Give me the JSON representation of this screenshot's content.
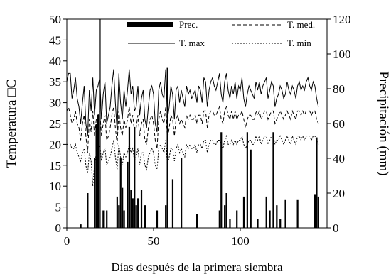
{
  "chart_data": {
    "type": "line",
    "title": "",
    "xlabel": "Días después de la primera siembra",
    "ylabel_left": "Temperatura □C",
    "ylabel_right": "Precipitación (mm)",
    "xlim": [
      0,
      150
    ],
    "ylim_left": [
      0,
      50
    ],
    "ylim_right": [
      0,
      120
    ],
    "x_ticks": [
      0,
      50,
      100
    ],
    "y_left_ticks": [
      0,
      5,
      10,
      15,
      20,
      25,
      30,
      35,
      40,
      45,
      50
    ],
    "y_right_ticks": [
      0,
      20,
      40,
      60,
      80,
      100,
      120
    ],
    "grid": false,
    "legend_position": "top",
    "legend": [
      {
        "key": "prec",
        "label": "Prec."
      },
      {
        "key": "tmed",
        "label": "T. med."
      },
      {
        "key": "tmax",
        "label": "T. max"
      },
      {
        "key": "tmin",
        "label": "T. min"
      }
    ],
    "series": [
      {
        "name": "T. max",
        "axis": "left",
        "style": "solid",
        "x_start": 0,
        "x_step": 1,
        "values": [
          35,
          37,
          37,
          31,
          33,
          36,
          31,
          29,
          25,
          30,
          34,
          25,
          22,
          33,
          28,
          36,
          27,
          33,
          34,
          36,
          26,
          32,
          35,
          25,
          27,
          29,
          34,
          38,
          30,
          23,
          37,
          30,
          26,
          33,
          29,
          33,
          38,
          32,
          34,
          28,
          29,
          34,
          27,
          31,
          33,
          26,
          24,
          29,
          33,
          34,
          32,
          25,
          23,
          33,
          35,
          32,
          31,
          38,
          26,
          29,
          34,
          32,
          26,
          33,
          34,
          30,
          33,
          31,
          29,
          34,
          32,
          33,
          31,
          32,
          33,
          30,
          34,
          33,
          30,
          36,
          35,
          29,
          33,
          35,
          36,
          34,
          33,
          35,
          37,
          32,
          30,
          35,
          37,
          33,
          31,
          34,
          32,
          35,
          31,
          34,
          33,
          36,
          31,
          29,
          32,
          34,
          33,
          32,
          31,
          35,
          33,
          35,
          32,
          34,
          35,
          36,
          31,
          33,
          35,
          34,
          29,
          31,
          32,
          34,
          33,
          31,
          32,
          35,
          33,
          32,
          34,
          33,
          31,
          34,
          35,
          33,
          34,
          33,
          35,
          36,
          34,
          33,
          35,
          34,
          31,
          29
        ]
      },
      {
        "name": "T. med.",
        "axis": "left",
        "style": "dashed",
        "x_start": 0,
        "x_step": 1,
        "values": [
          28,
          29,
          27,
          25,
          26,
          28,
          25,
          24,
          21,
          25,
          27,
          22,
          18,
          26,
          23,
          28,
          22,
          26,
          27,
          28,
          22,
          25,
          27,
          21,
          22,
          24,
          27,
          29,
          24,
          20,
          28,
          24,
          22,
          26,
          24,
          26,
          29,
          25,
          27,
          23,
          24,
          27,
          22,
          25,
          26,
          21,
          20,
          24,
          26,
          27,
          25,
          21,
          19,
          26,
          28,
          26,
          25,
          29,
          21,
          24,
          27,
          26,
          22,
          26,
          27,
          25,
          26,
          25,
          24,
          27,
          26,
          27,
          26,
          26,
          27,
          25,
          27,
          27,
          25,
          28,
          28,
          24,
          27,
          28,
          28,
          27,
          27,
          28,
          29,
          26,
          25,
          28,
          29,
          27,
          26,
          28,
          26,
          28,
          26,
          27,
          27,
          28,
          26,
          24,
          26,
          27,
          27,
          26,
          26,
          28,
          27,
          28,
          26,
          27,
          28,
          28,
          26,
          27,
          28,
          28,
          25,
          26,
          27,
          28,
          27,
          26,
          27,
          28,
          27,
          26,
          28,
          27,
          26,
          28,
          28,
          27,
          28,
          27,
          28,
          28,
          28,
          27,
          28,
          28,
          26,
          25
        ]
      },
      {
        "name": "T. min",
        "axis": "left",
        "style": "dotted",
        "x_start": 0,
        "x_step": 1,
        "values": [
          20,
          20,
          20,
          19,
          19,
          20,
          18,
          17,
          16,
          18,
          19,
          15,
          13,
          18,
          16,
          10,
          15,
          18,
          19,
          20,
          16,
          18,
          19,
          15,
          16,
          17,
          19,
          21,
          17,
          14,
          20,
          17,
          15,
          18,
          17,
          18,
          20,
          18,
          19,
          16,
          17,
          19,
          15,
          18,
          18,
          15,
          14,
          17,
          18,
          19,
          18,
          15,
          14,
          19,
          20,
          19,
          18,
          21,
          15,
          17,
          19,
          19,
          16,
          19,
          20,
          18,
          19,
          18,
          17,
          20,
          19,
          20,
          19,
          19,
          20,
          18,
          20,
          20,
          19,
          21,
          21,
          18,
          20,
          21,
          21,
          20,
          20,
          21,
          21,
          20,
          19,
          21,
          22,
          20,
          20,
          21,
          20,
          21,
          20,
          21,
          21,
          22,
          20,
          19,
          20,
          21,
          21,
          20,
          20,
          22,
          21,
          22,
          20,
          21,
          22,
          22,
          20,
          21,
          22,
          22,
          20,
          21,
          21,
          22,
          21,
          20,
          21,
          22,
          21,
          20,
          22,
          21,
          20,
          22,
          22,
          21,
          22,
          21,
          22,
          22,
          22,
          21,
          22,
          22,
          21,
          20
        ]
      },
      {
        "name": "Prec.",
        "axis": "right",
        "type": "bar",
        "points": [
          {
            "x": 8,
            "y": 2
          },
          {
            "x": 12,
            "y": 20
          },
          {
            "x": 16,
            "y": 40
          },
          {
            "x": 17,
            "y": 60
          },
          {
            "x": 18,
            "y": 65
          },
          {
            "x": 19,
            "y": 120
          },
          {
            "x": 21,
            "y": 10
          },
          {
            "x": 23,
            "y": 10
          },
          {
            "x": 29,
            "y": 18
          },
          {
            "x": 30,
            "y": 13
          },
          {
            "x": 31,
            "y": 40
          },
          {
            "x": 32,
            "y": 23
          },
          {
            "x": 33,
            "y": 10
          },
          {
            "x": 35,
            "y": 38
          },
          {
            "x": 36,
            "y": 58
          },
          {
            "x": 37,
            "y": 22
          },
          {
            "x": 38,
            "y": 17
          },
          {
            "x": 39,
            "y": 58
          },
          {
            "x": 40,
            "y": 13
          },
          {
            "x": 41,
            "y": 17
          },
          {
            "x": 43,
            "y": 22
          },
          {
            "x": 45,
            "y": 13
          },
          {
            "x": 52,
            "y": 10
          },
          {
            "x": 57,
            "y": 13
          },
          {
            "x": 58,
            "y": 92
          },
          {
            "x": 61,
            "y": 28
          },
          {
            "x": 66,
            "y": 40
          },
          {
            "x": 75,
            "y": 8
          },
          {
            "x": 88,
            "y": 10
          },
          {
            "x": 89,
            "y": 55
          },
          {
            "x": 91,
            "y": 13
          },
          {
            "x": 92,
            "y": 20
          },
          {
            "x": 94,
            "y": 5
          },
          {
            "x": 98,
            "y": 10
          },
          {
            "x": 102,
            "y": 18
          },
          {
            "x": 104,
            "y": 55
          },
          {
            "x": 106,
            "y": 45
          },
          {
            "x": 110,
            "y": 5
          },
          {
            "x": 115,
            "y": 18
          },
          {
            "x": 117,
            "y": 10
          },
          {
            "x": 119,
            "y": 55
          },
          {
            "x": 121,
            "y": 13
          },
          {
            "x": 123,
            "y": 5
          },
          {
            "x": 126,
            "y": 16
          },
          {
            "x": 133,
            "y": 16
          },
          {
            "x": 143,
            "y": 19
          },
          {
            "x": 144,
            "y": 52
          },
          {
            "x": 145,
            "y": 18
          }
        ]
      }
    ]
  }
}
